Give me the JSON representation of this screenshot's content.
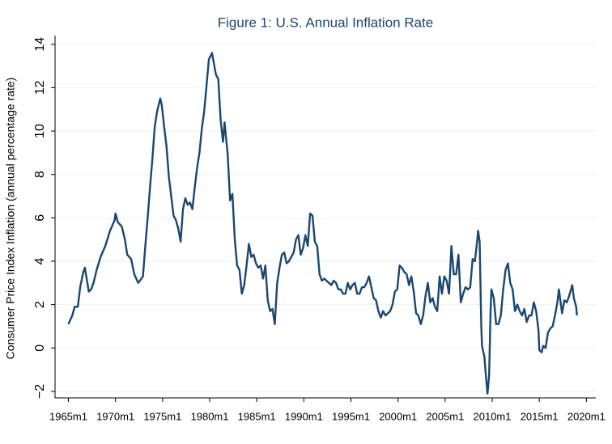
{
  "chart_data": {
    "type": "line",
    "title": "Figure 1: U.S. Annual Inflation Rate",
    "y_label": "Consumer Price Index Inflation (annual percentage rate)",
    "color": "#1a476f",
    "grid": true,
    "xlim": [
      "1963m8",
      "2021m1"
    ],
    "xticks": [
      "1965m1",
      "1970m1",
      "1975m1",
      "1980m1",
      "1985m1",
      "1990m1",
      "1995m1",
      "2000m1",
      "2005m1",
      "2010m1",
      "2015m1",
      "2020m1"
    ],
    "ylim": [
      -2.3,
      14.4
    ],
    "yticks": [
      {
        "value": -2,
        "label": "−2"
      },
      0,
      2,
      4,
      6,
      8,
      10,
      12,
      14
    ],
    "x": [
      "1965m1",
      "1965m6",
      "1965m9",
      "1966m1",
      "1966m4",
      "1966m8",
      "1966m10",
      "1967m3",
      "1967m6",
      "1967m9",
      "1968m1",
      "1968m6",
      "1968m12",
      "1969m6",
      "1969m12",
      "1970m1",
      "1970m4",
      "1970m9",
      "1971m1",
      "1971m4",
      "1971m9",
      "1972m1",
      "1972m6",
      "1972m12",
      "1973m3",
      "1973m6",
      "1973m9",
      "1973m12",
      "1974m3",
      "1974m6",
      "1974m10",
      "1974m12",
      "1975m3",
      "1975m6",
      "1975m9",
      "1975m12",
      "1976m3",
      "1976m6",
      "1976m9",
      "1976m12",
      "1977m3",
      "1977m6",
      "1977m9",
      "1977m12",
      "1978m3",
      "1978m6",
      "1978m9",
      "1978m12",
      "1979m3",
      "1979m6",
      "1979m9",
      "1979m12",
      "1980m4",
      "1980m9",
      "1980m12",
      "1981m3",
      "1981m6",
      "1981m8",
      "1981m12",
      "1982m3",
      "1982m6",
      "1982m9",
      "1982m12",
      "1983m3",
      "1983m6",
      "1983m9",
      "1983m12",
      "1984m3",
      "1984m6",
      "1984m9",
      "1984m12",
      "1985m3",
      "1985m6",
      "1985m9",
      "1985m12",
      "1986m3",
      "1986m6",
      "1986m9",
      "1986m12",
      "1987m3",
      "1987m6",
      "1987m9",
      "1987m12",
      "1988m3",
      "1988m6",
      "1988m9",
      "1988m12",
      "1989m3",
      "1989m6",
      "1989m9",
      "1989m12",
      "1990m3",
      "1990m6",
      "1990m9",
      "1990m12",
      "1991m3",
      "1991m6",
      "1991m9",
      "1991m12",
      "1992m3",
      "1992m6",
      "1992m9",
      "1992m12",
      "1993m3",
      "1993m6",
      "1993m9",
      "1993m12",
      "1994m3",
      "1994m6",
      "1994m9",
      "1994m12",
      "1995m3",
      "1995m6",
      "1995m9",
      "1995m12",
      "1996m3",
      "1996m6",
      "1996m9",
      "1996m12",
      "1997m3",
      "1997m6",
      "1997m9",
      "1997m12",
      "1998m3",
      "1998m6",
      "1998m9",
      "1998m12",
      "1999m3",
      "1999m6",
      "1999m9",
      "1999m12",
      "2000m3",
      "2000m6",
      "2000m9",
      "2000m12",
      "2001m3",
      "2001m6",
      "2001m9",
      "2001m12",
      "2002m3",
      "2002m6",
      "2002m9",
      "2002m12",
      "2003m3",
      "2003m6",
      "2003m9",
      "2003m12",
      "2004m3",
      "2004m6",
      "2004m9",
      "2004m12",
      "2005m3",
      "2005m6",
      "2005m9",
      "2005m12",
      "2006m3",
      "2006m6",
      "2006m9",
      "2006m12",
      "2007m3",
      "2007m6",
      "2007m9",
      "2007m12",
      "2008m3",
      "2008m6",
      "2008m7",
      "2008m9",
      "2008m11",
      "2008m12",
      "2009m3",
      "2009m5",
      "2009m7",
      "2009m9",
      "2009m11",
      "2009m12",
      "2010m3",
      "2010m6",
      "2010m9",
      "2010m12",
      "2011m3",
      "2011m6",
      "2011m9",
      "2011m12",
      "2012m3",
      "2012m6",
      "2012m9",
      "2012m12",
      "2013m3",
      "2013m6",
      "2013m9",
      "2013m12",
      "2014m3",
      "2014m6",
      "2014m9",
      "2014m12",
      "2015m1",
      "2015m4",
      "2015m6",
      "2015m9",
      "2015m12",
      "2016m3",
      "2016m6",
      "2016m9",
      "2016m12",
      "2017m2",
      "2017m6",
      "2017m9",
      "2017m12",
      "2018m3",
      "2018m7",
      "2018m9",
      "2018m12",
      "2019m1"
    ],
    "values": [
      1.1,
      1.5,
      1.9,
      1.9,
      2.8,
      3.5,
      3.7,
      2.6,
      2.7,
      3.0,
      3.6,
      4.2,
      4.7,
      5.4,
      5.9,
      6.2,
      5.8,
      5.6,
      5.0,
      4.3,
      4.1,
      3.4,
      3.0,
      3.3,
      4.7,
      6.0,
      7.4,
      8.7,
      10.2,
      10.9,
      11.5,
      11.2,
      10.2,
      9.3,
      7.9,
      7.0,
      6.1,
      5.9,
      5.5,
      4.9,
      6.4,
      6.9,
      6.6,
      6.7,
      6.4,
      7.4,
      8.3,
      9.0,
      10.1,
      10.9,
      12.1,
      13.3,
      13.6,
      12.6,
      12.4,
      10.5,
      9.5,
      10.4,
      8.9,
      6.8,
      7.1,
      5.0,
      3.8,
      3.6,
      2.5,
      2.9,
      3.8,
      4.8,
      4.2,
      4.3,
      3.9,
      3.7,
      3.8,
      3.2,
      3.8,
      2.2,
      1.7,
      1.8,
      1.1,
      3.0,
      3.7,
      4.3,
      4.4,
      3.9,
      4.0,
      4.2,
      4.4,
      5.0,
      5.2,
      4.3,
      4.6,
      5.2,
      4.7,
      6.2,
      6.1,
      4.9,
      4.7,
      3.4,
      3.1,
      3.2,
      3.1,
      3.0,
      2.9,
      3.1,
      3.0,
      2.7,
      2.7,
      2.5,
      2.5,
      3.0,
      2.7,
      2.9,
      3.0,
      2.5,
      2.5,
      2.8,
      2.8,
      3.0,
      3.3,
      2.8,
      2.3,
      2.2,
      1.7,
      1.4,
      1.7,
      1.5,
      1.6,
      1.7,
      2.0,
      2.6,
      2.7,
      3.8,
      3.7,
      3.5,
      3.4,
      2.9,
      3.3,
      2.6,
      1.6,
      1.5,
      1.1,
      1.5,
      2.4,
      3.0,
      2.1,
      2.3,
      1.9,
      1.7,
      3.3,
      2.5,
      3.3,
      3.1,
      2.5,
      4.7,
      3.4,
      3.4,
      4.3,
      2.1,
      2.5,
      2.8,
      2.7,
      2.8,
      4.1,
      4.0,
      5.0,
      5.4,
      4.9,
      1.1,
      0.1,
      -0.4,
      -1.3,
      -2.1,
      -1.3,
      1.8,
      2.7,
      2.3,
      1.1,
      1.1,
      1.5,
      2.7,
      3.6,
      3.9,
      3.0,
      2.7,
      1.7,
      2.0,
      1.7,
      1.5,
      1.8,
      1.2,
      1.5,
      1.5,
      2.1,
      1.7,
      0.8,
      -0.1,
      -0.2,
      0.1,
      0.0,
      0.7,
      0.9,
      1.0,
      1.5,
      2.1,
      2.7,
      1.6,
      2.2,
      2.1,
      2.4,
      2.9,
      2.3,
      1.9,
      1.5
    ]
  }
}
